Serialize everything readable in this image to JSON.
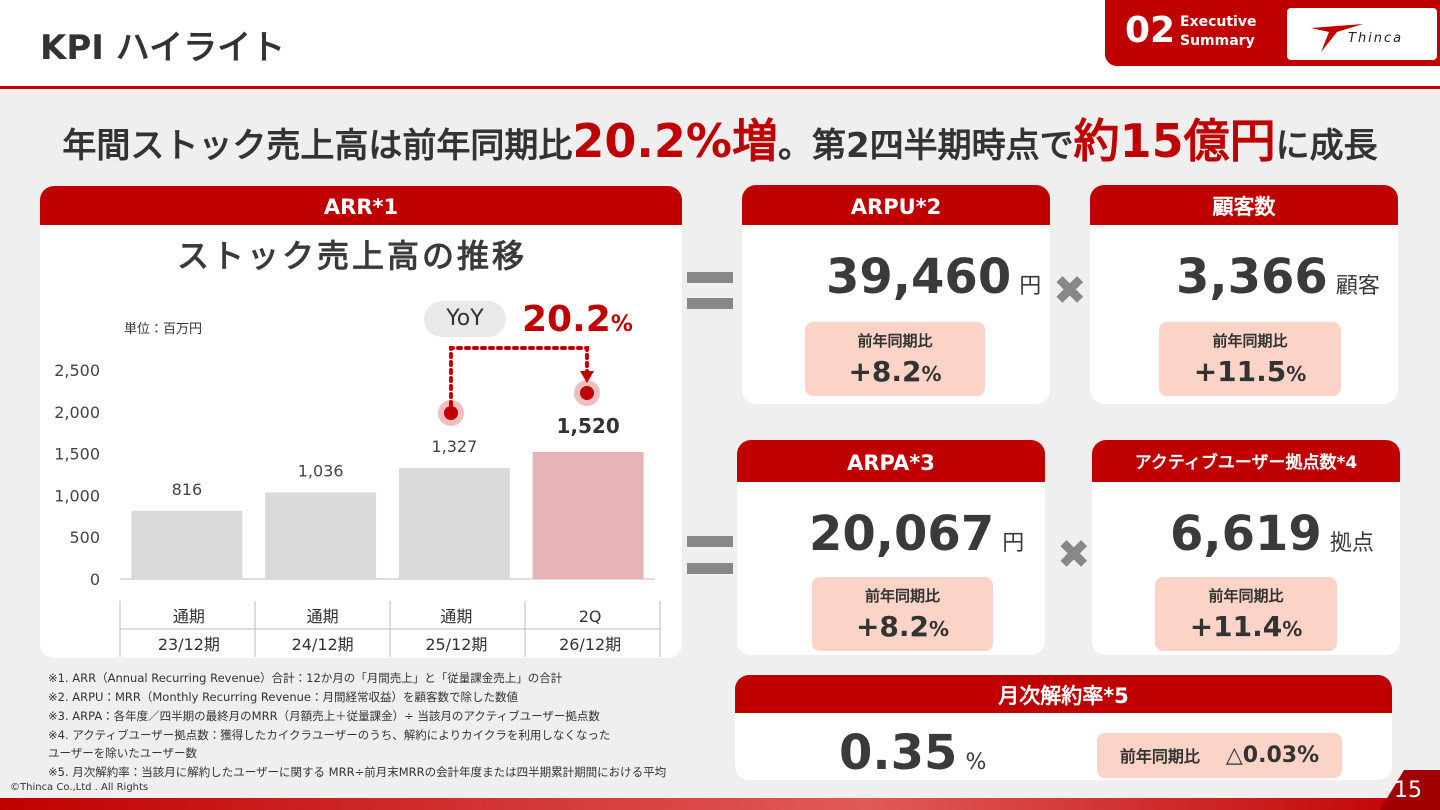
{
  "header": {
    "title": "KPI ハイライト",
    "section_number": "02",
    "section_label_1": "Executive",
    "section_label_2": "Summary",
    "logo": "Thinca"
  },
  "headline": {
    "part_1": "年間ストック売上高は前年同期比",
    "highlight_1": "20.2%増",
    "part_2": "。第2四半期時点で",
    "highlight_2": "約15億円",
    "part_3": "に成長"
  },
  "arr_panel": {
    "header": "ARR*1",
    "chart_title": "ストック売上高の推移",
    "unit_note": "単位：百万円",
    "yoy_label": "YoY",
    "yoy_value": "20.2",
    "yoy_unit": "%"
  },
  "chart_data": {
    "type": "bar",
    "categories": [
      "通期",
      "通期",
      "通期",
      "2Q"
    ],
    "periods": [
      "23/12期",
      "24/12期",
      "25/12期",
      "26/12期"
    ],
    "values": [
      816,
      1036,
      1327,
      1520
    ],
    "value_labels": [
      "816",
      "1,036",
      "1,327",
      "1,520"
    ],
    "colors": [
      "#d9d9d9",
      "#d9d9d9",
      "#d9d9d9",
      "#e8b3b6"
    ],
    "ylim": [
      0,
      2500
    ],
    "yticks": [
      0,
      500,
      {
        "value": 1000,
        "label": "1,000"
      },
      {
        "value": 1500,
        "label": "1,500"
      },
      {
        "value": 2000,
        "label": "2,000"
      },
      {
        "value": 2500,
        "label": "2,500"
      }
    ],
    "grid": false
  },
  "kpis": [
    {
      "header": "ARPU*2",
      "value": "39,460",
      "unit": "円",
      "change_label": "前年同期比",
      "change": "+8.2",
      "change_unit": "%"
    },
    {
      "header": "顧客数",
      "value": "3,366",
      "unit": "顧客",
      "change_label": "前年同期比",
      "change": "+11.5",
      "change_unit": "%"
    },
    {
      "header": "ARPA*3",
      "value": "20,067",
      "unit": "円",
      "change_label": "前年同期比",
      "change": "+8.2",
      "change_unit": "%"
    },
    {
      "header": "アクティブユーザー拠点数*4",
      "value": "6,619",
      "unit": "拠点",
      "change_label": "前年同期比",
      "change": "+11.4",
      "change_unit": "%"
    }
  ],
  "churn": {
    "header": "月次解約率*5",
    "value": "0.35",
    "unit": "%",
    "change_label": "前年同期比",
    "change": "△0.03%"
  },
  "footnotes": [
    "※1. ARR（Annual Recurring Revenue）合計：12か月の「月間売上」と「従量課金売上」の合計",
    "※2. ARPU：MRR（Monthly Recurring Revenue：月間経常収益）を顧客数で除した数値",
    "※3. ARPA：各年度／四半期の最終月のMRR（月額売上＋従量課金）÷ 当該月のアクティブユーザー拠点数",
    "※4. アクティブユーザー拠点数：獲得したカイクラユーザーのうち、解約によりカイクラを利用しなくなった",
    "ユーザーを除いたユーザー数",
    "※5. 月次解約率：当該月に解約したユーザーに関する MRR÷前月末MRRの会計年度または四半期累計期間における平均"
  ],
  "footer": {
    "copyright": "©Thinca Co.,Ltd . All Rights",
    "page": "15"
  }
}
